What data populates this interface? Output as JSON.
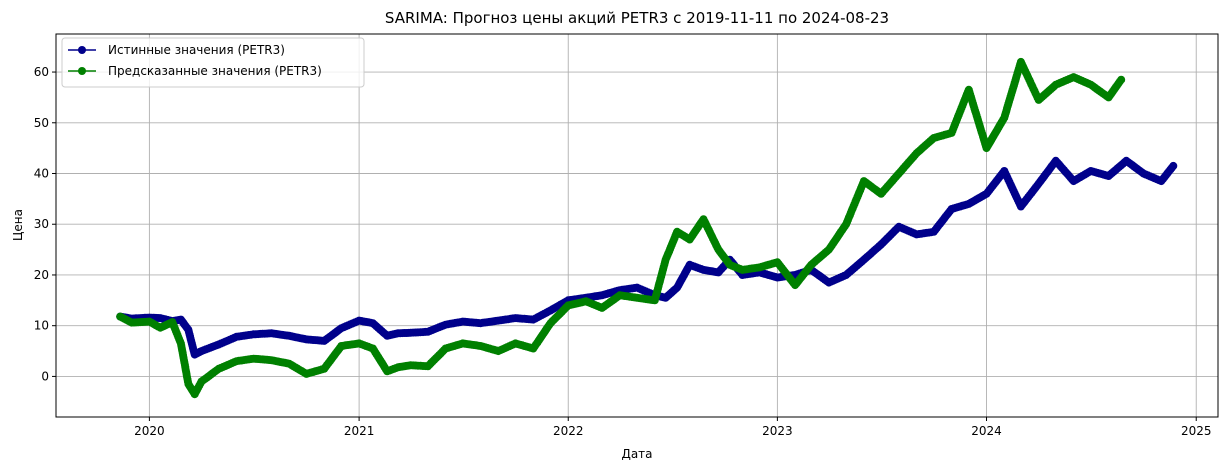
{
  "chart_data": {
    "type": "line",
    "title": "SARIMA: Прогноз цены акций PETR3 с 2019-11-11 по 2024-08-23",
    "xlabel": "Дата",
    "ylabel": "Цена",
    "xlim": [
      "2019-07-22",
      "2025-02-08"
    ],
    "ylim": [
      -8,
      67.5
    ],
    "x_ticks": [
      "2020-01-01",
      "2021-01-01",
      "2022-01-01",
      "2023-01-01",
      "2024-01-01",
      "2025-01-01"
    ],
    "x_tick_labels": [
      "2020",
      "2021",
      "2022",
      "2023",
      "2024",
      "2025"
    ],
    "y_ticks": [
      0,
      10,
      20,
      30,
      40,
      50,
      60
    ],
    "y_tick_labels": [
      "0",
      "10",
      "20",
      "30",
      "40",
      "50",
      "60"
    ],
    "grid": true,
    "legend_position": "top-left",
    "series": [
      {
        "name": "Истинные значения (PETR3)",
        "color": "#00008b",
        "marker": "circle",
        "x": [
          "2019-11-11",
          "2019-12-01",
          "2020-01-01",
          "2020-01-20",
          "2020-02-10",
          "2020-02-25",
          "2020-03-09",
          "2020-03-20",
          "2020-04-01",
          "2020-05-01",
          "2020-06-01",
          "2020-07-01",
          "2020-08-01",
          "2020-09-01",
          "2020-10-01",
          "2020-11-01",
          "2020-12-01",
          "2021-01-01",
          "2021-01-25",
          "2021-02-19",
          "2021-03-10",
          "2021-04-01",
          "2021-05-01",
          "2021-06-01",
          "2021-07-01",
          "2021-08-01",
          "2021-09-01",
          "2021-10-01",
          "2021-11-01",
          "2021-12-01",
          "2022-01-01",
          "2022-02-01",
          "2022-03-01",
          "2022-04-01",
          "2022-05-01",
          "2022-06-01",
          "2022-06-20",
          "2022-07-10",
          "2022-08-01",
          "2022-08-25",
          "2022-09-20",
          "2022-10-10",
          "2022-11-01",
          "2022-12-01",
          "2023-01-01",
          "2023-02-01",
          "2023-03-01",
          "2023-04-01",
          "2023-05-01",
          "2023-06-01",
          "2023-07-01",
          "2023-08-01",
          "2023-09-01",
          "2023-10-01",
          "2023-11-01",
          "2023-12-01",
          "2024-01-01",
          "2024-02-01",
          "2024-03-01",
          "2024-04-01",
          "2024-05-01",
          "2024-06-01",
          "2024-07-01",
          "2024-08-01",
          "2024-09-01",
          "2024-10-01",
          "2024-11-01",
          "2024-11-22"
        ],
        "y": [
          11.8,
          11.4,
          11.6,
          11.5,
          10.9,
          11.2,
          9.2,
          4.3,
          5.0,
          6.3,
          7.8,
          8.3,
          8.5,
          8.0,
          7.3,
          7.0,
          9.5,
          11.0,
          10.5,
          8.0,
          8.5,
          8.6,
          8.8,
          10.2,
          10.8,
          10.5,
          11.0,
          11.5,
          11.2,
          13.0,
          15.0,
          15.5,
          16.0,
          17.0,
          17.5,
          16.0,
          15.5,
          17.5,
          22.0,
          21.0,
          20.5,
          23.0,
          20.0,
          20.5,
          19.5,
          20.0,
          21.0,
          18.5,
          20.0,
          23.0,
          26.0,
          29.5,
          28.0,
          28.5,
          33.0,
          34.0,
          36.0,
          40.5,
          33.5,
          38.0,
          42.5,
          38.5,
          40.5,
          39.5,
          42.5,
          40.0,
          38.5,
          41.5
        ]
      },
      {
        "name": "Предсказанные значения (PETR3)",
        "color": "#008000",
        "marker": "circle",
        "x": [
          "2019-11-11",
          "2019-12-01",
          "2020-01-01",
          "2020-01-20",
          "2020-02-10",
          "2020-02-25",
          "2020-03-09",
          "2020-03-20",
          "2020-04-01",
          "2020-05-01",
          "2020-06-01",
          "2020-07-01",
          "2020-08-01",
          "2020-09-01",
          "2020-10-01",
          "2020-11-01",
          "2020-12-01",
          "2021-01-01",
          "2021-01-25",
          "2021-02-19",
          "2021-03-10",
          "2021-04-01",
          "2021-05-01",
          "2021-06-01",
          "2021-07-01",
          "2021-08-01",
          "2021-09-01",
          "2021-10-01",
          "2021-11-01",
          "2021-12-01",
          "2022-01-01",
          "2022-02-01",
          "2022-03-01",
          "2022-04-01",
          "2022-05-01",
          "2022-06-01",
          "2022-06-20",
          "2022-07-10",
          "2022-08-01",
          "2022-08-25",
          "2022-09-20",
          "2022-10-10",
          "2022-11-01",
          "2022-12-01",
          "2023-01-01",
          "2023-02-01",
          "2023-03-01",
          "2023-04-01",
          "2023-05-01",
          "2023-06-01",
          "2023-07-01",
          "2023-08-01",
          "2023-09-01",
          "2023-10-01",
          "2023-11-01",
          "2023-12-01",
          "2024-01-01",
          "2024-02-01",
          "2024-03-01",
          "2024-04-01",
          "2024-05-01",
          "2024-06-01",
          "2024-07-01",
          "2024-08-01",
          "2024-08-23"
        ],
        "y": [
          11.8,
          10.6,
          10.8,
          9.6,
          10.7,
          6.5,
          -1.5,
          -3.5,
          -1.0,
          1.5,
          3.0,
          3.5,
          3.2,
          2.5,
          0.5,
          1.5,
          6.0,
          6.5,
          5.5,
          1.0,
          1.8,
          2.2,
          2.0,
          5.5,
          6.5,
          6.0,
          5.0,
          6.5,
          5.5,
          10.5,
          14.0,
          14.8,
          13.5,
          16.0,
          15.5,
          15.0,
          23.0,
          28.5,
          27.0,
          31.0,
          25.0,
          22.0,
          21.0,
          21.5,
          22.5,
          18.0,
          22.0,
          25.0,
          30.0,
          38.5,
          36.0,
          40.0,
          44.0,
          47.0,
          48.0,
          56.5,
          45.0,
          51.0,
          62.0,
          54.5,
          57.5,
          59.0,
          57.5,
          55.0,
          58.5
        ]
      }
    ]
  }
}
